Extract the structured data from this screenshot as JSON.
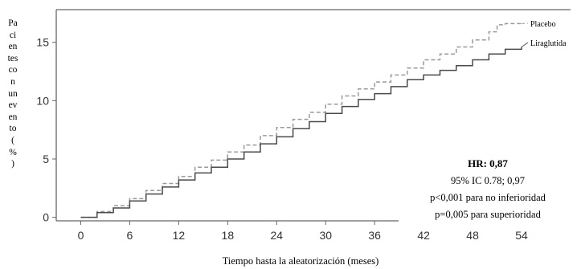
{
  "chart_data": {
    "type": "line",
    "title": "",
    "xlabel": "Tiempo hasta la aleatorización (meses)",
    "ylabel": "Pacientes con un evento (%)",
    "xlim": [
      -3,
      60
    ],
    "ylim": [
      -0.3,
      17.8
    ],
    "xticks": [
      0,
      6,
      12,
      18,
      24,
      30,
      36,
      42,
      48,
      54
    ],
    "yticks": [
      0,
      5,
      10,
      15
    ],
    "grid": false,
    "series": [
      {
        "name": "Placebo",
        "style": "dashed",
        "color": "#9a9a9a",
        "x": [
          0,
          2,
          4,
          6,
          8,
          10,
          12,
          14,
          16,
          18,
          20,
          22,
          24,
          26,
          28,
          30,
          32,
          34,
          36,
          38,
          40,
          42,
          44,
          46,
          48,
          50,
          51,
          52,
          54
        ],
        "y": [
          0,
          0.5,
          1.0,
          1.6,
          2.3,
          2.9,
          3.5,
          4.3,
          4.9,
          5.6,
          6.2,
          7.0,
          7.7,
          8.4,
          9.0,
          9.7,
          10.4,
          11.0,
          11.6,
          12.2,
          12.8,
          13.5,
          14.0,
          14.6,
          15.2,
          15.9,
          16.5,
          16.6,
          16.6
        ]
      },
      {
        "name": "Liraglutida",
        "style": "solid",
        "color": "#4a4a4a",
        "x": [
          0,
          2,
          4,
          6,
          8,
          10,
          12,
          14,
          16,
          18,
          20,
          22,
          24,
          26,
          28,
          30,
          32,
          34,
          36,
          38,
          40,
          42,
          44,
          46,
          48,
          50,
          52,
          54
        ],
        "y": [
          0,
          0.4,
          0.8,
          1.4,
          2.0,
          2.6,
          3.2,
          3.8,
          4.3,
          5.0,
          5.6,
          6.3,
          6.9,
          7.6,
          8.2,
          8.9,
          9.5,
          10.1,
          10.6,
          11.2,
          11.8,
          12.2,
          12.6,
          13.0,
          13.5,
          14.0,
          14.4,
          14.6
        ]
      }
    ],
    "annotations": {
      "hr": "HR: 0,87",
      "ci": "95% IC 0.78; 0,97",
      "p_noninf": "p<0,001 para no inferioridad",
      "p_sup": "p=0,005 para superioridad"
    }
  }
}
